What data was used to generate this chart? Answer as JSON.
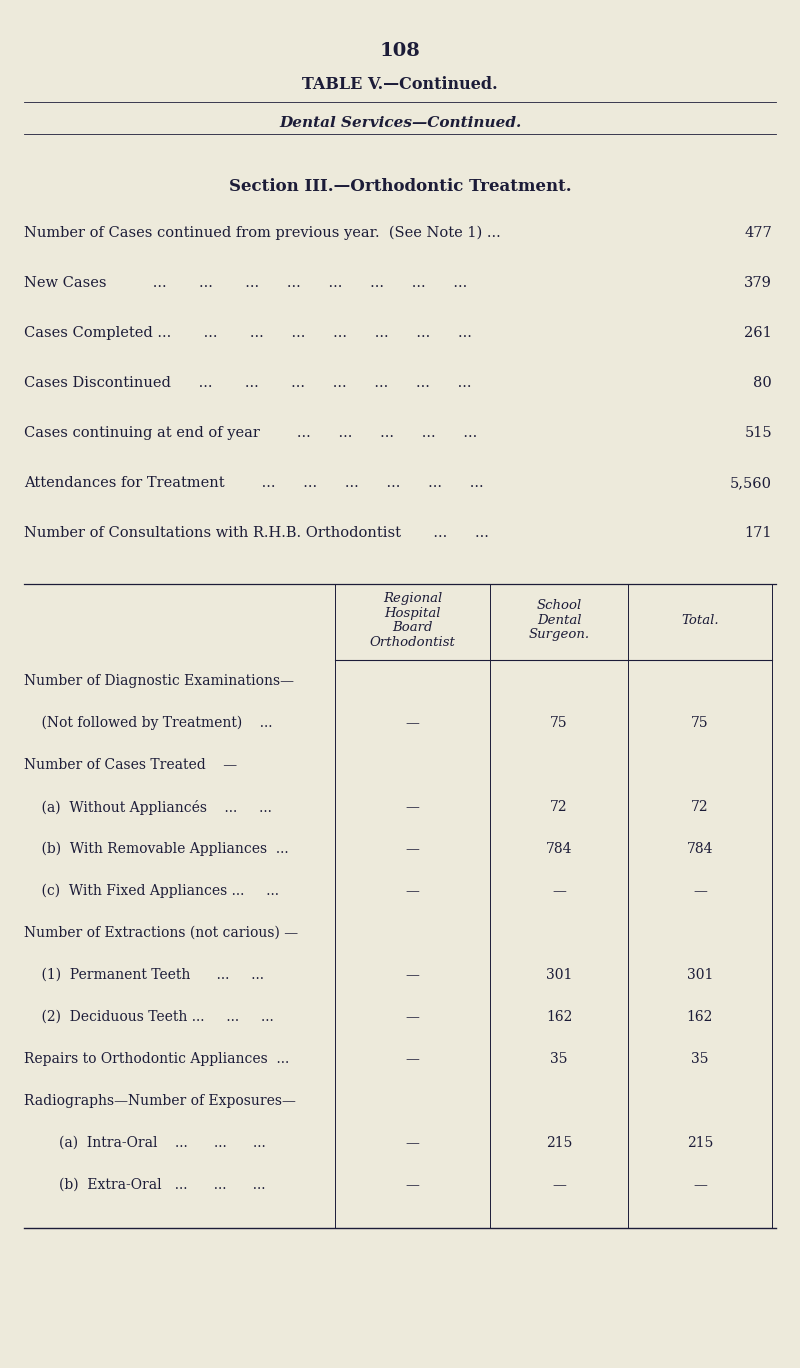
{
  "page_number": "108",
  "title1": "TABLE V.—Continued.",
  "title2": "Dental Services—Continued.",
  "title3": "Section III.—Orthodontic Treatment.",
  "bg_color": "#edeadb",
  "text_color": "#1c1c38",
  "top_rows": [
    {
      "label": "Number of Cases continued from previous year.  (See Note 1) ...",
      "value": "477"
    },
    {
      "label": "New Cases          ...       ...       ...      ...      ...      ...      ...      ...",
      "value": "379"
    },
    {
      "label": "Cases Completed ...       ...       ...      ...      ...      ...      ...      ...",
      "value": "261"
    },
    {
      "label": "Cases Discontinued      ...       ...       ...      ...      ...      ...      ...",
      "value": "80"
    },
    {
      "label": "Cases continuing at end of year        ...      ...      ...      ...      ...",
      "value": "515"
    },
    {
      "label": "Attendances for Treatment        ...      ...      ...      ...      ...      ...",
      "value": "5,560"
    },
    {
      "label": "Number of Consultations with R.H.B. Orthodontist       ...      ...     ",
      "value": "171"
    }
  ],
  "col_headers_rhb": [
    "Regional",
    "Hospital",
    "Board",
    "Orthodontist"
  ],
  "col_headers_sds": [
    "School",
    "Dental",
    "Surgeon."
  ],
  "col_header_total": "Total.",
  "table_rows": [
    {
      "label": "Number of Diagnostic Examinations—",
      "indent": false,
      "rhb": "",
      "sds": "",
      "total": "",
      "header_only": true
    },
    {
      "label": "    (Not followed by Treatment)    ...",
      "indent": true,
      "rhb": "—",
      "sds": "75",
      "total": "75",
      "header_only": false
    },
    {
      "label": "Number of Cases Treated    —",
      "indent": false,
      "rhb": "",
      "sds": "",
      "total": "",
      "header_only": true
    },
    {
      "label": "    (a)  Without Appliancés    ...     ...",
      "indent": true,
      "rhb": "—",
      "sds": "72",
      "total": "72",
      "header_only": false
    },
    {
      "label": "    (b)  With Removable Appliances  ...",
      "indent": true,
      "rhb": "—",
      "sds": "784",
      "total": "784",
      "header_only": false
    },
    {
      "label": "    (c)  With Fixed Appliances ...     ...",
      "indent": true,
      "rhb": "—",
      "sds": "—",
      "total": "—",
      "header_only": false
    },
    {
      "label": "Number of Extractions (not carious) —",
      "indent": false,
      "rhb": "",
      "sds": "",
      "total": "",
      "header_only": true
    },
    {
      "label": "    (1)  Permanent Teeth      ...     ...",
      "indent": true,
      "rhb": "—",
      "sds": "301",
      "total": "301",
      "header_only": false
    },
    {
      "label": "    (2)  Deciduous Teeth ...     ...     ...",
      "indent": true,
      "rhb": "—",
      "sds": "162",
      "total": "162",
      "header_only": false
    },
    {
      "label": "Repairs to Orthodontic Appliances  ...",
      "indent": false,
      "rhb": "—",
      "sds": "35",
      "total": "35",
      "header_only": false
    },
    {
      "label": "Radiographs—Number of Exposures—",
      "indent": false,
      "rhb": "",
      "sds": "",
      "total": "",
      "header_only": true
    },
    {
      "label": "        (a)  Intra-Oral    ...      ...      ...",
      "indent": true,
      "rhb": "—",
      "sds": "215",
      "total": "215",
      "header_only": false
    },
    {
      "label": "        (b)  Extra-Oral   ...      ...      ...",
      "indent": true,
      "rhb": "—",
      "sds": "—",
      "total": "—",
      "header_only": false
    }
  ]
}
